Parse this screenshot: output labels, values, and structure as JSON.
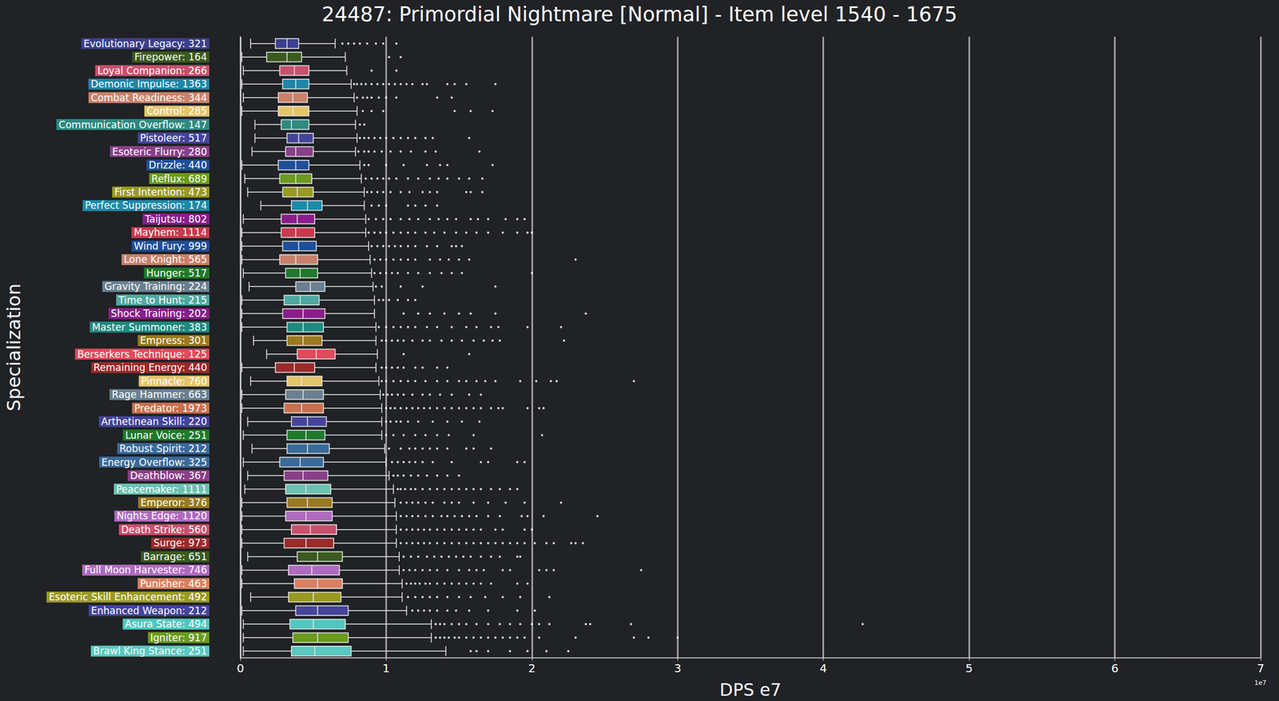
{
  "chart_data": {
    "type": "boxplot",
    "title": "24487: Primordial Nightmare [Normal] - Item level 1540 - 1675",
    "x_label": "DPS e7",
    "y_label": "Specialization",
    "offset_text": "1e7",
    "orientation": "horizontal",
    "grid": true,
    "xlim": [
      0,
      7
    ],
    "xticks": [
      0,
      1,
      2,
      3,
      4,
      5,
      6,
      7
    ],
    "categories": [
      "Evolutionary Legacy: 321",
      "Firepower: 164",
      "Loyal Companion: 266",
      "Demonic Impulse: 1363",
      "Combat Readiness: 344",
      "Control: 285",
      "Communication Overflow: 147",
      "Pistoleer: 517",
      "Esoteric Flurry: 280",
      "Drizzle: 440",
      "Reflux: 689",
      "First Intention: 473",
      "Perfect Suppression: 174",
      "Taijutsu: 802",
      "Mayhem: 1114",
      "Wind Fury: 999",
      "Lone Knight: 565",
      "Hunger: 517",
      "Gravity Training: 224",
      "Time to Hunt: 215",
      "Shock Training: 202",
      "Master Summoner: 383",
      "Empress: 301",
      "Berserkers Technique: 125",
      "Remaining Energy: 440",
      "Pinnacle: 760",
      "Rage Hammer: 663",
      "Predator: 1973",
      "Arthetinean Skill: 220",
      "Lunar Voice: 251",
      "Robust Spirit: 212",
      "Energy Overflow: 325",
      "Deathblow: 367",
      "Peacemaker: 1111",
      "Emperor: 376",
      "Nights Edge: 1120",
      "Death Strike: 560",
      "Surge: 973",
      "Barrage: 651",
      "Full Moon Harvester: 746",
      "Punisher: 463",
      "Esoteric Skill Enhancement: 492",
      "Enhanced Weapon: 212",
      "Asura State: 494",
      "Igniter: 917",
      "Brawl King Stance: 251"
    ],
    "colors": [
      "#3b3f8c",
      "#3a5a1e",
      "#c8506e",
      "#1e87a8",
      "#c9826a",
      "#e3c56a",
      "#2e8a80",
      "#44449a",
      "#8a3f8a",
      "#1f4f98",
      "#6b9a1e",
      "#9a9a22",
      "#1b8aa8",
      "#8a1e8a",
      "#c83a4e",
      "#1e4f9a",
      "#c9806a",
      "#1e7a2a",
      "#6a8090",
      "#4fa8a0",
      "#8a1e8a",
      "#1e8a80",
      "#9a7a1e",
      "#e04a5a",
      "#9a2a2a",
      "#e3c56a",
      "#6a8090",
      "#c9704e",
      "#44449a",
      "#1e7a2a",
      "#3a6a9a",
      "#3a6a9a",
      "#8a3f8a",
      "#6ac2b0",
      "#9a7a1e",
      "#b06ac0",
      "#c8506e",
      "#9a2a2a",
      "#3a5a1e",
      "#b06ac0",
      "#d88060",
      "#9a9a22",
      "#44449a",
      "#4fc8c0",
      "#6a9a1e",
      "#5ac8c0"
    ],
    "boxes": [
      [
        0.07,
        0.24,
        0.32,
        0.4,
        0.65
      ],
      [
        0.01,
        0.18,
        0.32,
        0.42,
        0.72
      ],
      [
        0.02,
        0.27,
        0.37,
        0.47,
        0.73
      ],
      [
        0.01,
        0.29,
        0.38,
        0.47,
        0.76
      ],
      [
        0.02,
        0.26,
        0.36,
        0.46,
        0.78
      ],
      [
        0.01,
        0.26,
        0.36,
        0.47,
        0.8
      ],
      [
        0.1,
        0.28,
        0.35,
        0.47,
        0.79
      ],
      [
        0.1,
        0.32,
        0.4,
        0.5,
        0.8
      ],
      [
        0.08,
        0.31,
        0.38,
        0.5,
        0.79
      ],
      [
        0.01,
        0.26,
        0.38,
        0.47,
        0.82
      ],
      [
        0.03,
        0.27,
        0.38,
        0.49,
        0.83
      ],
      [
        0.05,
        0.29,
        0.39,
        0.5,
        0.85
      ],
      [
        0.14,
        0.35,
        0.46,
        0.56,
        0.85
      ],
      [
        0.02,
        0.28,
        0.39,
        0.51,
        0.86
      ],
      [
        0.01,
        0.28,
        0.38,
        0.51,
        0.86
      ],
      [
        0.01,
        0.29,
        0.4,
        0.52,
        0.88
      ],
      [
        0.01,
        0.27,
        0.38,
        0.53,
        0.89
      ],
      [
        0.02,
        0.31,
        0.41,
        0.53,
        0.9
      ],
      [
        0.06,
        0.38,
        0.48,
        0.58,
        0.91
      ],
      [
        0.01,
        0.3,
        0.41,
        0.54,
        0.92
      ],
      [
        0.01,
        0.29,
        0.43,
        0.58,
        0.92
      ],
      [
        0.01,
        0.32,
        0.43,
        0.57,
        0.93
      ],
      [
        0.09,
        0.32,
        0.43,
        0.56,
        0.93
      ],
      [
        0.18,
        0.39,
        0.52,
        0.65,
        0.94
      ],
      [
        0.01,
        0.24,
        0.37,
        0.51,
        0.93
      ],
      [
        0.07,
        0.32,
        0.42,
        0.56,
        0.95
      ],
      [
        0.01,
        0.31,
        0.43,
        0.57,
        0.96
      ],
      [
        0.01,
        0.3,
        0.42,
        0.57,
        0.97
      ],
      [
        0.05,
        0.35,
        0.46,
        0.59,
        0.97
      ],
      [
        0.02,
        0.32,
        0.45,
        0.58,
        0.97
      ],
      [
        0.08,
        0.32,
        0.46,
        0.61,
        0.99
      ],
      [
        0.02,
        0.27,
        0.41,
        0.57,
        1.0
      ],
      [
        0.05,
        0.3,
        0.43,
        0.6,
        1.02
      ],
      [
        0.03,
        0.31,
        0.45,
        0.62,
        1.05
      ],
      [
        0.01,
        0.32,
        0.46,
        0.63,
        1.06
      ],
      [
        0.01,
        0.31,
        0.45,
        0.63,
        1.07
      ],
      [
        0.01,
        0.35,
        0.48,
        0.66,
        1.07
      ],
      [
        0.01,
        0.3,
        0.45,
        0.64,
        1.07
      ],
      [
        0.05,
        0.39,
        0.53,
        0.7,
        1.09
      ],
      [
        0.01,
        0.33,
        0.49,
        0.68,
        1.09
      ],
      [
        0.01,
        0.37,
        0.53,
        0.7,
        1.11
      ],
      [
        0.07,
        0.33,
        0.5,
        0.69,
        1.11
      ],
      [
        0.01,
        0.38,
        0.53,
        0.74,
        1.14
      ],
      [
        0.02,
        0.34,
        0.5,
        0.72,
        1.31
      ],
      [
        0.02,
        0.36,
        0.53,
        0.74,
        1.31
      ],
      [
        0.02,
        0.35,
        0.51,
        0.76,
        1.41
      ]
    ],
    "outliers": [
      [
        0.7,
        0.74,
        0.78,
        0.82,
        0.87,
        0.93,
        0.98,
        1.07
      ],
      [
        1.02,
        1.1
      ],
      [
        0.9,
        1.07
      ],
      [
        0.78,
        0.8,
        0.83,
        0.86,
        0.9,
        0.94,
        0.98,
        1.02,
        1.06,
        1.1,
        1.14,
        1.18,
        1.25,
        1.28,
        1.42,
        1.47,
        1.55,
        1.75
      ],
      [
        0.8,
        0.84,
        0.87,
        0.9,
        0.95,
        1.0,
        1.07,
        1.35,
        1.45
      ],
      [
        0.84,
        0.9,
        0.98,
        1.47,
        1.58,
        1.73
      ],
      [
        0.82,
        0.85
      ],
      [
        0.82,
        0.85,
        0.88,
        0.92,
        0.96,
        1.0,
        1.05,
        1.1,
        1.15,
        1.2,
        1.27,
        1.32,
        1.57
      ],
      [
        0.81,
        0.85,
        0.88,
        0.92,
        0.97,
        1.03,
        1.1,
        1.17,
        1.27,
        1.34,
        1.64
      ],
      [
        0.85,
        0.88,
        1.0,
        1.12,
        1.28,
        1.37,
        1.42,
        1.73
      ],
      [
        0.86,
        0.9,
        0.94,
        0.98,
        1.02,
        1.07,
        1.15,
        1.22,
        1.3,
        1.36,
        1.42,
        1.5,
        1.57,
        1.66
      ],
      [
        0.87,
        0.9,
        0.94,
        0.98,
        1.03,
        1.1,
        1.16,
        1.25,
        1.3,
        1.35,
        1.55,
        1.58,
        1.66
      ],
      [
        0.9,
        0.95,
        1.0,
        1.15,
        1.2,
        1.27,
        1.35
      ],
      [
        0.88,
        0.93,
        0.98,
        1.03,
        1.1,
        1.16,
        1.22,
        1.3,
        1.36,
        1.42,
        1.48,
        1.58,
        1.63,
        1.7,
        1.82,
        1.9,
        1.95
      ],
      [
        0.88,
        0.92,
        0.96,
        1.0,
        1.05,
        1.1,
        1.15,
        1.2,
        1.27,
        1.33,
        1.4,
        1.48,
        1.55,
        1.62,
        1.7,
        1.8,
        1.9,
        1.97,
        2.0
      ],
      [
        0.9,
        0.94,
        0.98,
        1.02,
        1.06,
        1.1,
        1.15,
        1.2,
        1.28,
        1.35,
        1.45,
        1.48,
        1.52
      ],
      [
        0.92,
        0.96,
        1.0,
        1.05,
        1.1,
        1.15,
        1.2,
        1.3,
        1.37,
        1.43,
        1.5,
        1.57,
        2.3
      ],
      [
        0.92,
        0.96,
        1.0,
        1.04,
        1.08,
        1.15,
        1.22,
        1.3,
        1.38,
        1.45,
        1.52,
        2.0
      ],
      [
        0.93,
        0.97,
        1.1,
        1.25,
        1.75
      ],
      [
        0.95,
        0.98,
        1.02,
        1.08,
        1.15,
        1.2
      ],
      [
        1.12,
        1.22,
        1.3,
        1.4,
        1.5,
        1.58,
        1.75,
        2.37
      ],
      [
        0.95,
        1.0,
        1.05,
        1.1,
        1.15,
        1.2,
        1.28,
        1.35,
        1.45,
        1.55,
        1.62,
        1.72,
        1.77,
        1.97,
        2.2
      ],
      [
        0.97,
        1.0,
        1.04,
        1.08,
        1.12,
        1.18,
        1.25,
        1.3,
        1.38,
        1.45,
        1.52,
        1.6,
        1.67,
        1.73,
        1.78,
        2.22
      ],
      [
        1.12,
        1.57
      ],
      [
        0.97,
        1.0,
        1.04,
        1.08,
        1.12,
        1.2,
        1.25,
        1.35,
        1.42
      ],
      [
        0.97,
        1.0,
        1.05,
        1.1,
        1.15,
        1.2,
        1.27,
        1.35,
        1.42,
        1.5,
        1.55,
        1.62,
        1.68,
        1.75,
        1.92,
        2.03,
        2.13,
        2.17,
        2.7
      ],
      [
        0.98,
        1.01,
        1.04,
        1.08,
        1.12,
        1.18,
        1.25,
        1.3,
        1.37,
        1.45,
        1.57,
        1.65
      ],
      [
        1.0,
        1.03,
        1.06,
        1.1,
        1.14,
        1.18,
        1.22,
        1.26,
        1.3,
        1.35,
        1.4,
        1.45,
        1.5,
        1.55,
        1.6,
        1.65,
        1.72,
        1.77,
        1.8,
        1.97,
        2.05,
        2.08
      ],
      [
        1.0,
        1.03,
        1.07,
        1.1,
        1.15,
        1.22,
        1.32,
        1.42,
        1.52,
        1.64
      ],
      [
        1.0,
        1.05,
        1.12,
        1.2,
        1.27,
        1.35,
        1.43,
        1.6,
        2.07
      ],
      [
        1.02,
        1.1,
        1.16,
        1.2,
        1.25,
        1.3,
        1.35,
        1.42,
        1.55,
        1.6,
        1.72
      ],
      [
        1.04,
        1.08,
        1.12,
        1.16,
        1.2,
        1.25,
        1.32,
        1.45,
        1.65,
        1.7,
        1.9,
        1.95
      ],
      [
        1.05,
        1.08,
        1.12,
        1.17,
        1.22,
        1.28,
        1.35,
        1.42,
        1.5
      ],
      [
        1.08,
        1.1,
        1.13,
        1.17,
        1.2,
        1.25,
        1.3,
        1.35,
        1.4,
        1.45,
        1.5,
        1.55,
        1.6,
        1.65,
        1.72,
        1.78,
        1.85,
        1.9
      ],
      [
        1.1,
        1.14,
        1.18,
        1.22,
        1.27,
        1.32,
        1.4,
        1.45,
        1.5,
        1.6,
        1.7,
        1.82,
        1.95,
        2.2
      ],
      [
        1.1,
        1.14,
        1.18,
        1.22,
        1.27,
        1.32,
        1.38,
        1.42,
        1.47,
        1.52,
        1.57,
        1.62,
        1.7,
        1.78,
        1.93,
        1.97,
        2.08,
        2.45
      ],
      [
        1.1,
        1.14,
        1.18,
        1.22,
        1.26,
        1.3,
        1.35,
        1.4,
        1.45,
        1.5,
        1.55,
        1.6,
        1.65,
        1.75,
        1.8,
        1.95,
        2.0
      ],
      [
        1.1,
        1.14,
        1.18,
        1.22,
        1.26,
        1.3,
        1.35,
        1.4,
        1.45,
        1.5,
        1.55,
        1.6,
        1.65,
        1.7,
        1.75,
        1.8,
        1.85,
        1.9,
        1.95,
        2.02,
        2.1,
        2.15,
        2.27,
        2.3,
        2.35
      ],
      [
        1.12,
        1.17,
        1.22,
        1.28,
        1.33,
        1.38,
        1.43,
        1.48,
        1.53,
        1.58,
        1.65,
        1.72,
        1.78,
        1.9,
        1.92
      ],
      [
        1.12,
        1.16,
        1.2,
        1.25,
        1.3,
        1.35,
        1.42,
        1.5,
        1.57,
        1.62,
        1.67,
        1.8,
        1.85,
        2.05,
        2.1,
        2.15,
        2.75
      ],
      [
        1.14,
        1.17,
        1.2,
        1.23,
        1.27,
        1.3,
        1.35,
        1.4,
        1.45,
        1.5,
        1.55,
        1.6,
        1.65,
        1.72,
        1.9,
        1.97
      ],
      [
        1.15,
        1.2,
        1.25,
        1.3,
        1.35,
        1.42,
        1.5,
        1.58,
        1.68,
        1.8,
        1.92,
        2.12
      ],
      [
        1.18,
        1.22,
        1.26,
        1.3,
        1.35,
        1.42,
        1.48,
        1.57,
        1.7,
        1.9,
        2.02
      ],
      [
        1.34,
        1.37,
        1.4,
        1.45,
        1.5,
        1.55,
        1.62,
        1.7,
        1.78,
        1.85,
        1.92,
        2.0,
        2.05,
        2.12,
        2.37,
        2.4,
        2.68,
        4.27
      ],
      [
        1.34,
        1.37,
        1.4,
        1.43,
        1.47,
        1.5,
        1.55,
        1.6,
        1.65,
        1.7,
        1.75,
        1.8,
        1.85,
        1.9,
        1.95,
        2.05,
        2.3,
        2.7,
        2.8,
        3.0
      ],
      [
        1.58,
        1.62,
        1.7,
        1.85,
        1.97,
        2.1,
        2.25
      ]
    ]
  }
}
